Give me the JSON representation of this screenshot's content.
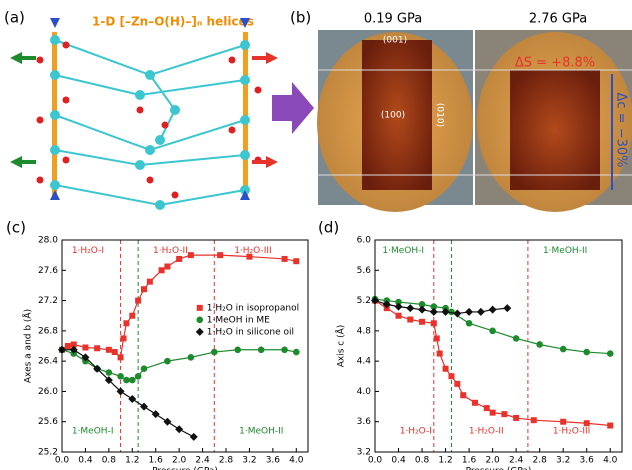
{
  "diagram": {
    "label": "(a)",
    "title": "1-D [–Zn–O(H)–]ₙ helices"
  },
  "photos": {
    "label": "(b)",
    "left": {
      "pressure": "0.19 GPa",
      "faces": [
        "(001)",
        "(100)",
        "(010)"
      ]
    },
    "right": {
      "pressure": "2.76 GPa",
      "strain": "ΔS = +8.8%",
      "compression": "Δc = −30%"
    }
  },
  "chart_data": [
    {
      "type": "scatter",
      "label": "(c)",
      "xlabel": "Pressure (GPa)",
      "ylabel": "Axes a and b (Å)",
      "xlim": [
        0,
        4.2
      ],
      "ylim": [
        25.2,
        28.0
      ],
      "xticks": [
        {
          "value": 0,
          "label": "0.0"
        },
        0.4,
        0.8,
        1.2,
        1.6,
        {
          "value": 2,
          "label": "2.0"
        },
        2.4,
        2.8,
        3.2,
        3.6,
        {
          "value": 4,
          "label": "4.0"
        }
      ],
      "yticks": [
        25.2,
        25.6,
        {
          "value": 26,
          "label": "26.0"
        },
        26.4,
        26.8,
        27.2,
        27.6,
        {
          "value": 28,
          "label": "28.0"
        }
      ],
      "legend": "right",
      "vlines": [
        {
          "x": 1.0,
          "color": "#e8322b"
        },
        {
          "x": 1.3,
          "color": "#1e8a2e"
        },
        {
          "x": 2.6,
          "color": "#e8322b"
        }
      ],
      "annotations": [
        {
          "text": "1·H₂O-I",
          "color": "#e8322b"
        },
        {
          "text": "1·H₂O-II",
          "color": "#e8322b"
        },
        {
          "text": "1·H₂O-III",
          "color": "#e8322b"
        },
        {
          "text": "1·MeOH-I",
          "color": "#1e8a2e"
        },
        {
          "text": "1·MeOH-II",
          "color": "#1e8a2e"
        }
      ],
      "series": [
        {
          "name": "1·H₂O in isopropanol",
          "color": "#e8322b",
          "marker": "square",
          "x": [
            0,
            0.1,
            0.2,
            0.4,
            0.6,
            0.8,
            0.9,
            1.0,
            1.05,
            1.1,
            1.2,
            1.3,
            1.4,
            1.5,
            1.7,
            1.8,
            2.0,
            2.2,
            2.7,
            3.2,
            3.8,
            4.0
          ],
          "values": [
            26.55,
            26.6,
            26.62,
            26.58,
            26.57,
            26.55,
            26.52,
            26.45,
            26.7,
            26.9,
            27.0,
            27.2,
            27.35,
            27.45,
            27.6,
            27.65,
            27.75,
            27.8,
            27.8,
            27.78,
            27.75,
            27.72
          ]
        },
        {
          "name": "1·MeOH in ME",
          "color": "#1e8a2e",
          "marker": "circle",
          "x": [
            0,
            0.2,
            0.4,
            0.6,
            0.8,
            1.0,
            1.1,
            1.2,
            1.3,
            1.4,
            1.8,
            2.2,
            2.6,
            3.0,
            3.4,
            3.8,
            4.0
          ],
          "values": [
            26.55,
            26.5,
            26.4,
            26.3,
            26.25,
            26.2,
            26.15,
            26.15,
            26.2,
            26.3,
            26.4,
            26.45,
            26.52,
            26.55,
            26.55,
            26.55,
            26.52
          ]
        },
        {
          "name": "1·H₂O in silicone oil",
          "color": "#111111",
          "marker": "diamond",
          "x": [
            0,
            0.2,
            0.4,
            0.6,
            0.8,
            1.0,
            1.2,
            1.4,
            1.6,
            1.8,
            2.0,
            2.25
          ],
          "values": [
            26.55,
            26.55,
            26.45,
            26.3,
            26.15,
            26.0,
            25.9,
            25.8,
            25.7,
            25.6,
            25.5,
            25.4
          ]
        }
      ]
    },
    {
      "type": "scatter",
      "label": "(d)",
      "xlabel": "Pressure (GPa)",
      "ylabel": "Axis c (Å)",
      "xlim": [
        0,
        4.2
      ],
      "ylim": [
        3.2,
        6.0
      ],
      "xticks": [
        {
          "value": 0,
          "label": "0.0"
        },
        0.4,
        0.8,
        1.2,
        1.6,
        {
          "value": 2,
          "label": "2.0"
        },
        2.4,
        2.8,
        3.2,
        3.6,
        {
          "value": 4,
          "label": "4.0"
        }
      ],
      "yticks": [
        3.2,
        3.6,
        {
          "value": 4,
          "label": "4.0"
        },
        4.4,
        4.8,
        5.2,
        5.6,
        {
          "value": 6,
          "label": "6.0"
        }
      ],
      "vlines": [
        {
          "x": 1.0,
          "color": "#e8322b"
        },
        {
          "x": 1.3,
          "color": "#1e8a2e"
        },
        {
          "x": 2.6,
          "color": "#e8322b"
        }
      ],
      "annotations": [
        {
          "text": "1·MeOH-I",
          "color": "#1e8a2e"
        },
        {
          "text": "1·MeOH-II",
          "color": "#1e8a2e"
        },
        {
          "text": "1·H₂O-I",
          "color": "#e8322b"
        },
        {
          "text": "1·H₂O-II",
          "color": "#e8322b"
        },
        {
          "text": "1·H₂O-III",
          "color": "#e8322b"
        }
      ],
      "series": [
        {
          "color": "#e8322b",
          "marker": "square",
          "x": [
            0,
            0.2,
            0.4,
            0.6,
            0.8,
            1.0,
            1.05,
            1.1,
            1.2,
            1.3,
            1.4,
            1.5,
            1.7,
            1.9,
            2.0,
            2.2,
            2.4,
            2.7,
            3.2,
            3.6,
            4.0
          ],
          "values": [
            5.2,
            5.1,
            5.0,
            4.95,
            4.92,
            4.9,
            4.7,
            4.5,
            4.3,
            4.2,
            4.1,
            3.95,
            3.85,
            3.78,
            3.72,
            3.7,
            3.65,
            3.62,
            3.6,
            3.58,
            3.55
          ]
        },
        {
          "color": "#1e8a2e",
          "marker": "circle",
          "x": [
            0,
            0.2,
            0.4,
            0.8,
            1.0,
            1.2,
            1.3,
            1.6,
            2.0,
            2.4,
            2.8,
            3.2,
            3.6,
            4.0
          ],
          "values": [
            5.22,
            5.2,
            5.18,
            5.15,
            5.12,
            5.1,
            5.05,
            4.9,
            4.8,
            4.7,
            4.62,
            4.56,
            4.52,
            4.5
          ]
        },
        {
          "color": "#111111",
          "marker": "diamond",
          "x": [
            0,
            0.2,
            0.4,
            0.6,
            0.8,
            1.0,
            1.2,
            1.4,
            1.6,
            1.8,
            2.0,
            2.25
          ],
          "values": [
            5.2,
            5.15,
            5.12,
            5.1,
            5.08,
            5.05,
            5.05,
            5.03,
            5.05,
            5.05,
            5.08,
            5.1
          ]
        }
      ]
    }
  ]
}
